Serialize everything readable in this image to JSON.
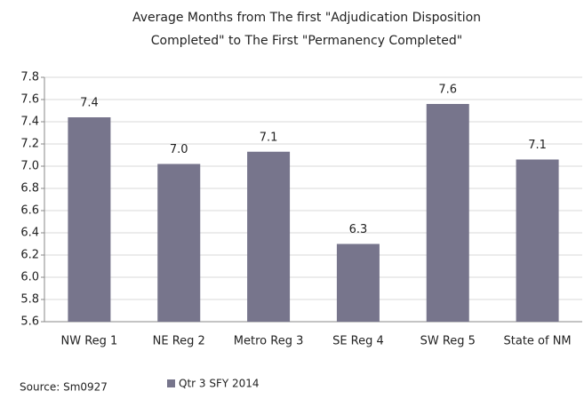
{
  "chart_data": {
    "type": "bar",
    "title": [
      "Average Months from The first \"Adjudication Disposition",
      "Completed\" to The First \"Permanency Completed\""
    ],
    "categories": [
      "NW Reg 1",
      "NE Reg 2",
      "Metro Reg 3",
      "SE Reg 4",
      "SW Reg 5",
      "State of NM"
    ],
    "series": [
      {
        "name": "Qtr 3 SFY 2014",
        "color": "#77758c",
        "values": [
          7.44,
          7.02,
          7.13,
          6.3,
          7.56,
          7.06
        ],
        "value_labels": [
          "7.4",
          "7.0",
          "7.1",
          "6.3",
          "7.6",
          "7.1"
        ]
      }
    ],
    "ylim": [
      5.6,
      7.8
    ],
    "yticks": [
      5.6,
      5.8,
      {
        "value": 6,
        "label": "6.0"
      },
      6.2,
      6.4,
      6.6,
      6.8,
      {
        "value": 7,
        "label": "7.0"
      },
      7.2,
      7.4,
      7.6,
      7.8
    ],
    "grid": true,
    "legend": "bottom",
    "annotation": "Source: Sm0927"
  }
}
